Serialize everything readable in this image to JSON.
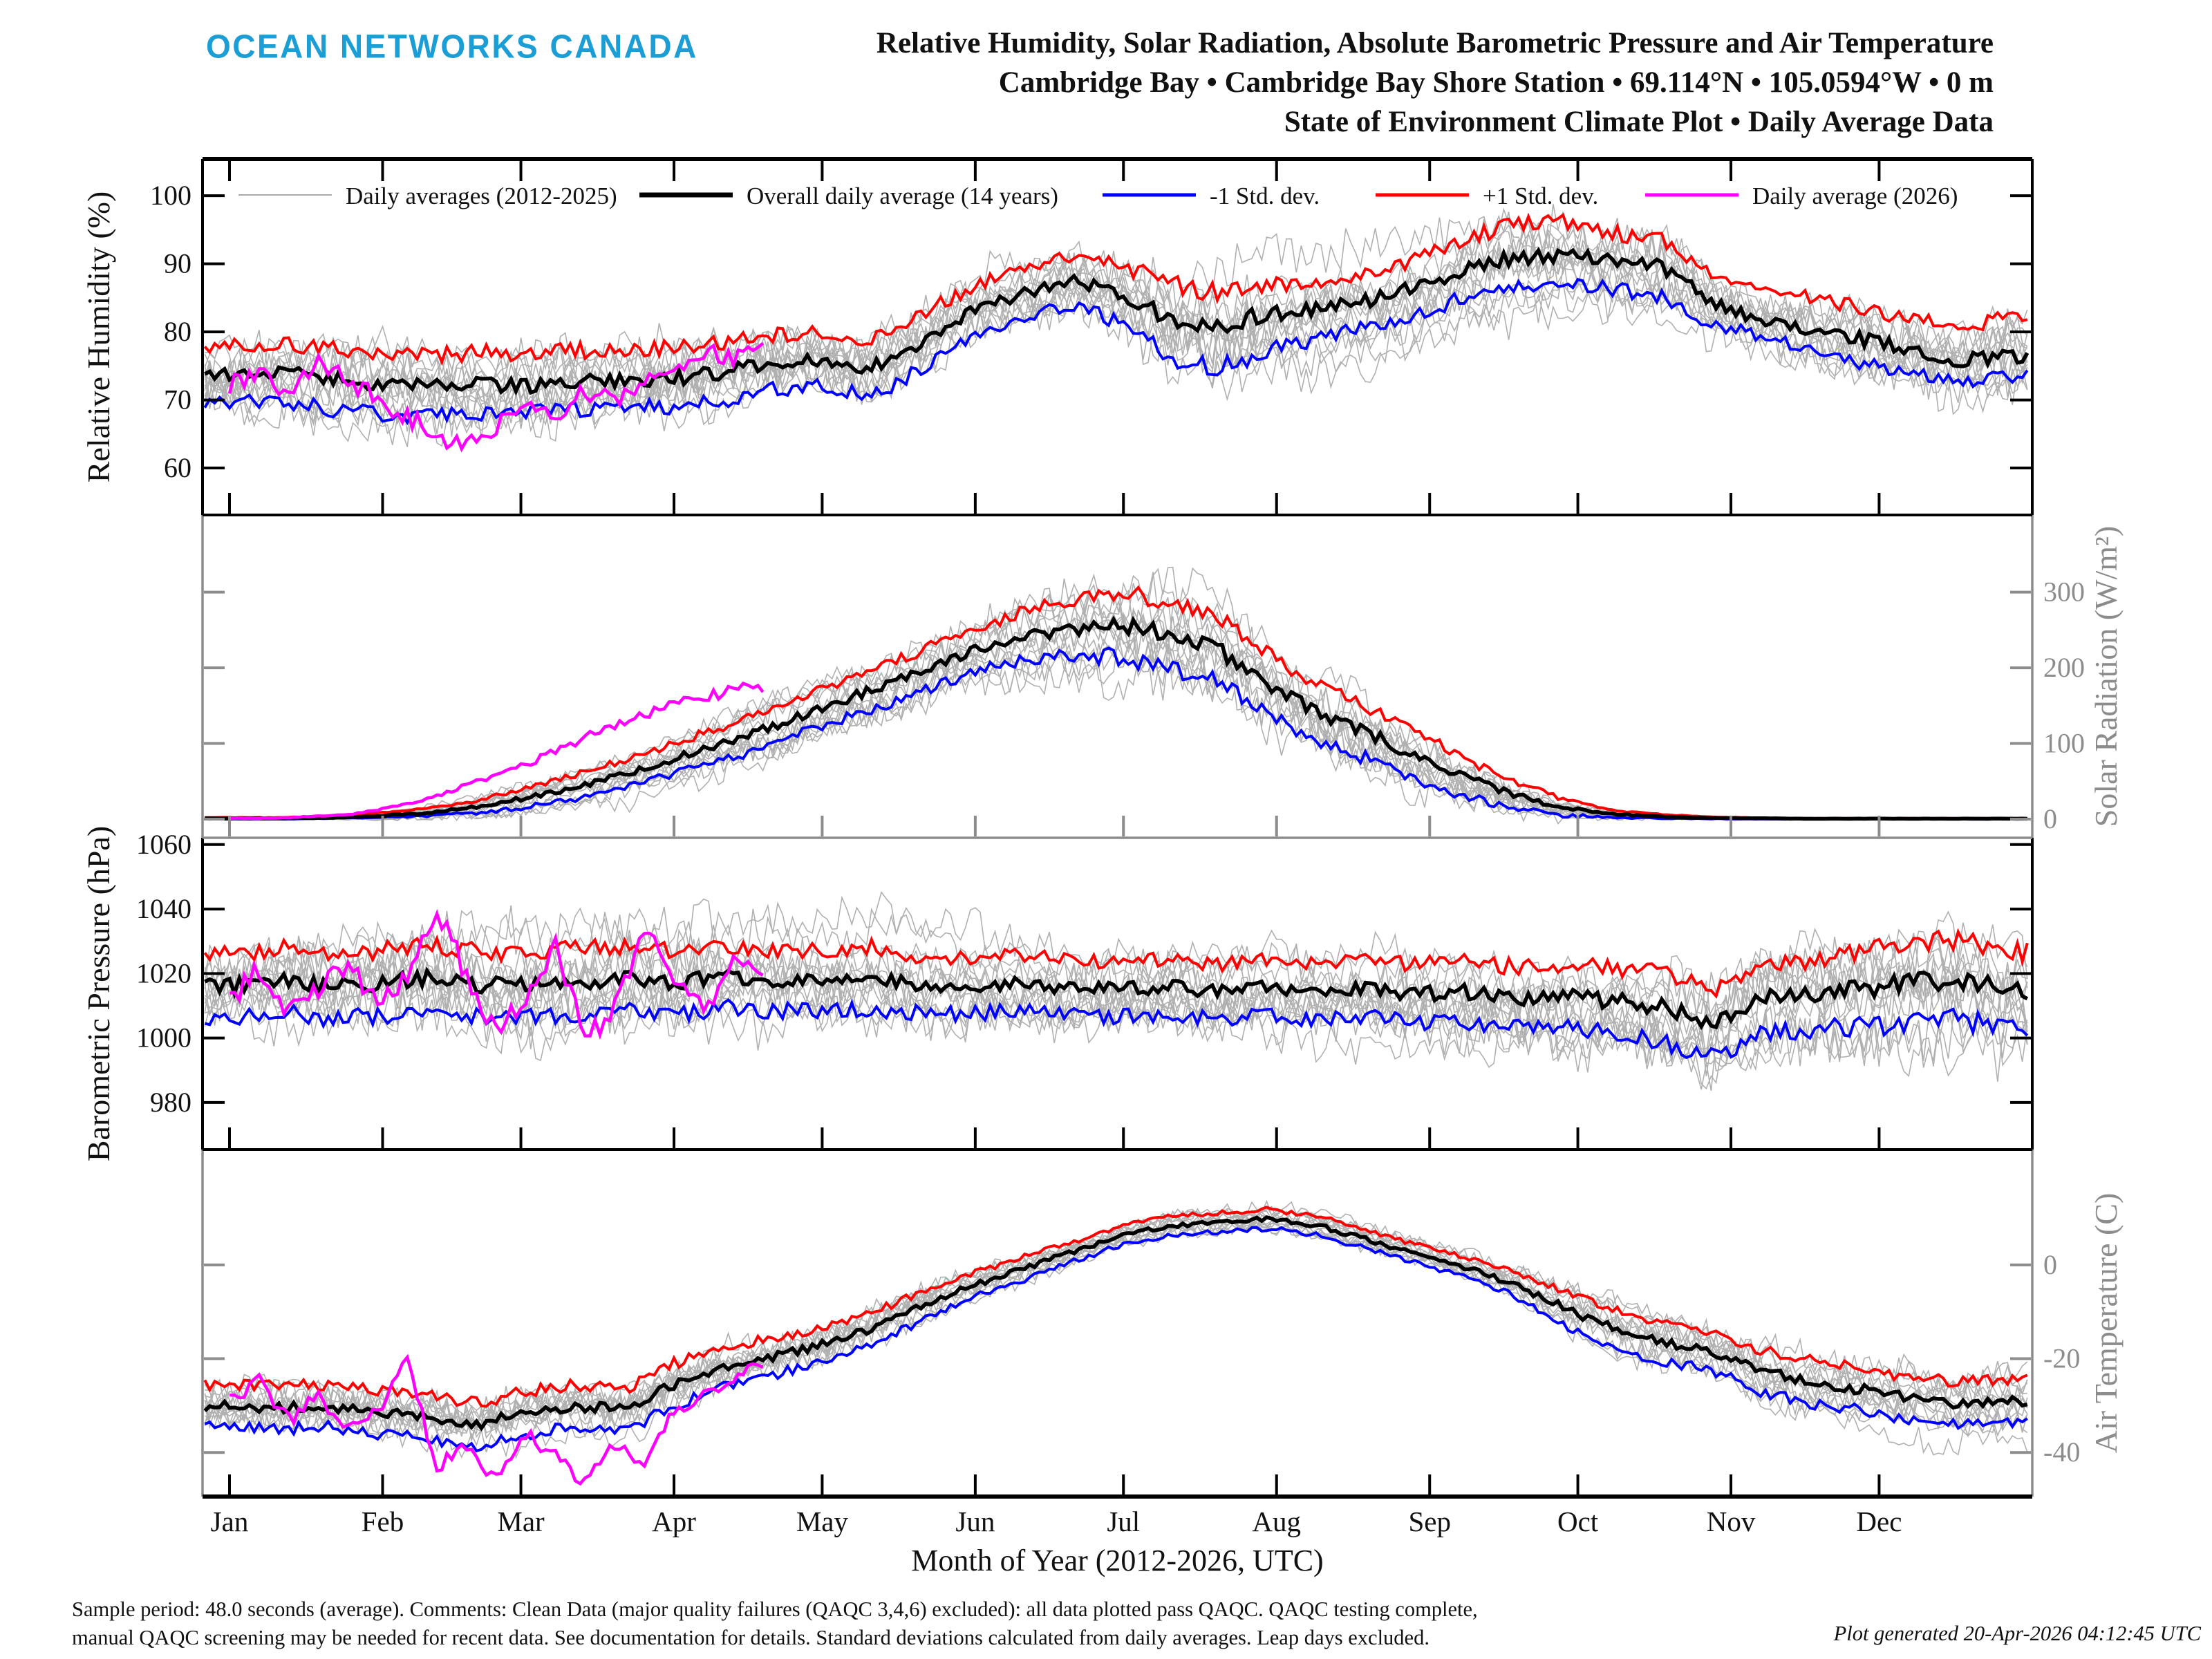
{
  "header": {
    "logo": "OCEAN NETWORKS CANADA",
    "title_line1": "Relative Humidity, Solar Radiation, Absolute Barometric Pressure and Air Temperature",
    "title_line2": "Cambridge Bay • Cambridge Bay Shore Station • 69.114°N • 105.0594°W • 0 m",
    "title_line3": "State of Environment Climate Plot • Daily Average Data"
  },
  "legend": [
    {
      "label": "Daily averages (2012-2025)",
      "color": "#aaaaaa",
      "lw": 2
    },
    {
      "label": "Overall daily average (14 years)",
      "color": "#000000",
      "lw": 7
    },
    {
      "label": "-1 Std. dev.",
      "color": "#0000ff",
      "lw": 5
    },
    {
      "label": "+1 Std. dev.",
      "color": "#ff0000",
      "lw": 5
    },
    {
      "label": "Daily average (2026)",
      "color": "#ff00ff",
      "lw": 5
    }
  ],
  "footer": {
    "note_line1": "Sample period: 48.0 seconds (average). Comments: Clean Data (major quality failures (QAQC 3,4,6) excluded): all data plotted pass QAQC. QAQC testing complete,",
    "note_line2": "manual QAQC screening may be needed for recent data. See documentation for details. Standard deviations calculated from daily averages. Leap days excluded.",
    "generated": "Plot generated 20-Apr-2026 04:12:45 UTC"
  },
  "chart_data": {
    "type": "line",
    "title": "State of Environment Climate Plot - Daily Average Data",
    "x_axis": {
      "label": "Month of Year (2012-2026, UTC)",
      "months": [
        "Jan",
        "Feb",
        "Mar",
        "Apr",
        "May",
        "Jun",
        "Jul",
        "Aug",
        "Sep",
        "Oct",
        "Nov",
        "Dec"
      ],
      "month_start_days": [
        0,
        31,
        59,
        90,
        120,
        151,
        181,
        212,
        243,
        273,
        304,
        334
      ],
      "days_per_year": 365
    },
    "colors": {
      "gray_years": "#b0b0b0",
      "mean": "#000000",
      "plus": "#ff0000",
      "minus": "#0000ff",
      "y2026": "#ff00ff"
    },
    "gray_year_count": 14,
    "gray_year_range": "2012-2025",
    "series_days": [
      0,
      10,
      20,
      30,
      40,
      50,
      60,
      70,
      80,
      90,
      100,
      110,
      120,
      130,
      140,
      150,
      160,
      170,
      180,
      190,
      200,
      210,
      220,
      230,
      240,
      250,
      260,
      270,
      280,
      290,
      300,
      310,
      320,
      330,
      340,
      350,
      360
    ],
    "series_days_2026": [
      0,
      6,
      12,
      18,
      24,
      30,
      36,
      42,
      48,
      54,
      60,
      66,
      72,
      78,
      84,
      90,
      96,
      102,
      108
    ],
    "panels": [
      {
        "id": "relative-humidity",
        "ylabel": "Relative Humidity (%)",
        "label_side": "left",
        "axis_color": "#000000",
        "ylim": [
          53.1,
          105.4
        ],
        "yticks": [
          60,
          70,
          80,
          90,
          100
        ],
        "mean": [
          73.5,
          74,
          73,
          72.5,
          71.8,
          72.2,
          72,
          72.5,
          73,
          73.2,
          74,
          75.5,
          76,
          74.8,
          78.5,
          83,
          85.5,
          87.5,
          86,
          82,
          81,
          82.5,
          83.5,
          84.5,
          86.5,
          89,
          90.8,
          91.3,
          90.3,
          89.5,
          84.5,
          81.5,
          80.5,
          79,
          77.5,
          75.8,
          76.5
        ],
        "plus1std": [
          78,
          78.5,
          77.5,
          77,
          76.5,
          77,
          76.8,
          77.2,
          77.5,
          77.8,
          78.5,
          79.5,
          80,
          79,
          82.5,
          86.5,
          89,
          91,
          90,
          87,
          86,
          87,
          87.5,
          88.5,
          90.5,
          93.5,
          96,
          96.3,
          94.5,
          93.5,
          88.5,
          86,
          85,
          83.5,
          82,
          80.5,
          82
        ],
        "minus1std": [
          69.5,
          70,
          68.5,
          68,
          67.5,
          68,
          68,
          68.5,
          69,
          69,
          70,
          71.5,
          72,
          70.5,
          74.5,
          79,
          82,
          84,
          81.5,
          76.5,
          74.5,
          77,
          79,
          80.5,
          82.5,
          85,
          86.5,
          87.3,
          86.3,
          85,
          81,
          79.5,
          77.5,
          75.5,
          74,
          72.5,
          73.5
        ],
        "daily2026": [
          72,
          74.5,
          71,
          75.5,
          73,
          70,
          67.5,
          64.5,
          63.8,
          66.5,
          70.5,
          67.5,
          71.5,
          69.5,
          72.5,
          74.5,
          77.5,
          76,
          79.5
        ]
      },
      {
        "id": "solar-radiation",
        "ylabel": "Solar Radiation (W/m²)",
        "label_side": "right",
        "axis_color": "#8c8c8c",
        "ylim": [
          -24.7,
          402
        ],
        "yticks": [
          0,
          100,
          200,
          300
        ],
        "mean": [
          1,
          1,
          2,
          4,
          8,
          16,
          28,
          42,
          60,
          80,
          100,
          122,
          148,
          170,
          195,
          222,
          240,
          252,
          258,
          245,
          225,
          180,
          140,
          115,
          85,
          55,
          32,
          15,
          7,
          3,
          1.5,
          1,
          0.5,
          0.5,
          0.5,
          0.5,
          0.5
        ],
        "plus1std": [
          2,
          2,
          4,
          8,
          14,
          25,
          40,
          58,
          78,
          100,
          122,
          146,
          172,
          196,
          222,
          250,
          272,
          290,
          300,
          288,
          268,
          222,
          178,
          150,
          115,
          80,
          50,
          26,
          12,
          6,
          3,
          1.5,
          1,
          1,
          1,
          1,
          1
        ],
        "minus1std": [
          0,
          0,
          1,
          2,
          4,
          8,
          16,
          27,
          42,
          60,
          78,
          98,
          124,
          145,
          168,
          194,
          208,
          215,
          215,
          200,
          182,
          138,
          102,
          80,
          55,
          30,
          15,
          5,
          2,
          1,
          0.5,
          0,
          0,
          0,
          0,
          0,
          0
        ],
        "daily2026": [
          1,
          1,
          2,
          4,
          6,
          12,
          20,
          30,
          45,
          58,
          72,
          90,
          108,
          122,
          138,
          152,
          162,
          170,
          175
        ]
      },
      {
        "id": "barometric-pressure",
        "ylabel": "Barometric Pressure (hPa)",
        "label_side": "left",
        "axis_color": "#000000",
        "ylim": [
          965.4,
          1062.1
        ],
        "yticks": [
          980,
          1000,
          1020,
          1040,
          1060
        ],
        "mean": [
          1016,
          1018,
          1015.5,
          1017,
          1018.5,
          1016.5,
          1016,
          1017.5,
          1018.5,
          1017,
          1019,
          1018,
          1017.5,
          1018.5,
          1016.5,
          1016,
          1017,
          1015.5,
          1015,
          1016,
          1014.5,
          1015.5,
          1014,
          1015.5,
          1013.5,
          1014.5,
          1012.5,
          1013,
          1011.5,
          1010,
          1004.5,
          1012,
          1013.5,
          1015,
          1017,
          1018.5,
          1014.5
        ],
        "plus1std": [
          1026,
          1028,
          1025.5,
          1027,
          1028.5,
          1027,
          1026.5,
          1027.5,
          1028.5,
          1027,
          1028.5,
          1027.5,
          1027,
          1028,
          1025.5,
          1024.5,
          1025.5,
          1024,
          1023.5,
          1024.5,
          1023,
          1024,
          1022.5,
          1024,
          1022.5,
          1024,
          1022,
          1023,
          1021.5,
          1021,
          1015,
          1023,
          1024.5,
          1026.5,
          1029.5,
          1031,
          1026.5
        ],
        "minus1std": [
          1006,
          1008,
          1005.5,
          1007,
          1008.5,
          1006.5,
          1006,
          1007.5,
          1008.5,
          1007,
          1009.5,
          1008.5,
          1008,
          1009,
          1007.5,
          1007.5,
          1008.5,
          1007,
          1006.5,
          1007.5,
          1006,
          1007,
          1005.5,
          1007,
          1004.5,
          1005,
          1003,
          1003,
          1001.5,
          999,
          994,
          1001,
          1002.5,
          1003.5,
          1004.5,
          1006,
          1002.5
        ],
        "daily2026": [
          1012,
          1021,
          1008,
          1016,
          1024,
          1010,
          1018,
          1039,
          1020,
          1002,
          1012,
          1030,
          999,
          1010,
          1034,
          1018,
          1008,
          1024,
          1020
        ]
      },
      {
        "id": "air-temperature",
        "ylabel": "Air Temperature (C)",
        "label_side": "right",
        "axis_color": "#8c8c8c",
        "ylim": [
          -49.4,
          24.6
        ],
        "yticks": [
          -40,
          -20,
          0
        ],
        "mean": [
          -30,
          -30.5,
          -30,
          -31.5,
          -32.5,
          -34,
          -31.5,
          -30,
          -31,
          -25.5,
          -22,
          -19.5,
          -17,
          -13.5,
          -9,
          -4.5,
          -1,
          2.5,
          6,
          8.3,
          9,
          9.8,
          8.5,
          5.5,
          2.5,
          -0.5,
          -4,
          -9,
          -13.5,
          -16.5,
          -18.5,
          -22.5,
          -25,
          -26.5,
          -28.5,
          -29.5,
          -29
        ],
        "plus1std": [
          -25.5,
          -26,
          -25.5,
          -27,
          -28,
          -29.5,
          -27,
          -25.5,
          -26.5,
          -21,
          -18,
          -15.5,
          -13.5,
          -10,
          -6,
          -2,
          1.5,
          4.5,
          8,
          10.3,
          11,
          11.8,
          10.5,
          7.5,
          4.5,
          1.5,
          -1.5,
          -5.5,
          -9.5,
          -12.5,
          -14.5,
          -18,
          -20.5,
          -22,
          -24,
          -25,
          -24.5
        ],
        "minus1std": [
          -34.5,
          -35,
          -34.5,
          -36,
          -37,
          -38.5,
          -36,
          -34.5,
          -35.5,
          -30,
          -26,
          -23.5,
          -20.5,
          -17,
          -12,
          -7,
          -3.5,
          0.5,
          4,
          6.3,
          7,
          7.8,
          6.5,
          3.5,
          0.5,
          -2.5,
          -6.5,
          -12.5,
          -17.5,
          -20.5,
          -22.5,
          -27,
          -29.5,
          -31,
          -33,
          -34,
          -33.5
        ],
        "daily2026": [
          -29,
          -24.5,
          -33,
          -28,
          -35,
          -31,
          -20.5,
          -43,
          -38,
          -46,
          -36,
          -41,
          -46.5,
          -38,
          -44,
          -31,
          -27.5,
          -24,
          -21.5
        ]
      }
    ]
  }
}
